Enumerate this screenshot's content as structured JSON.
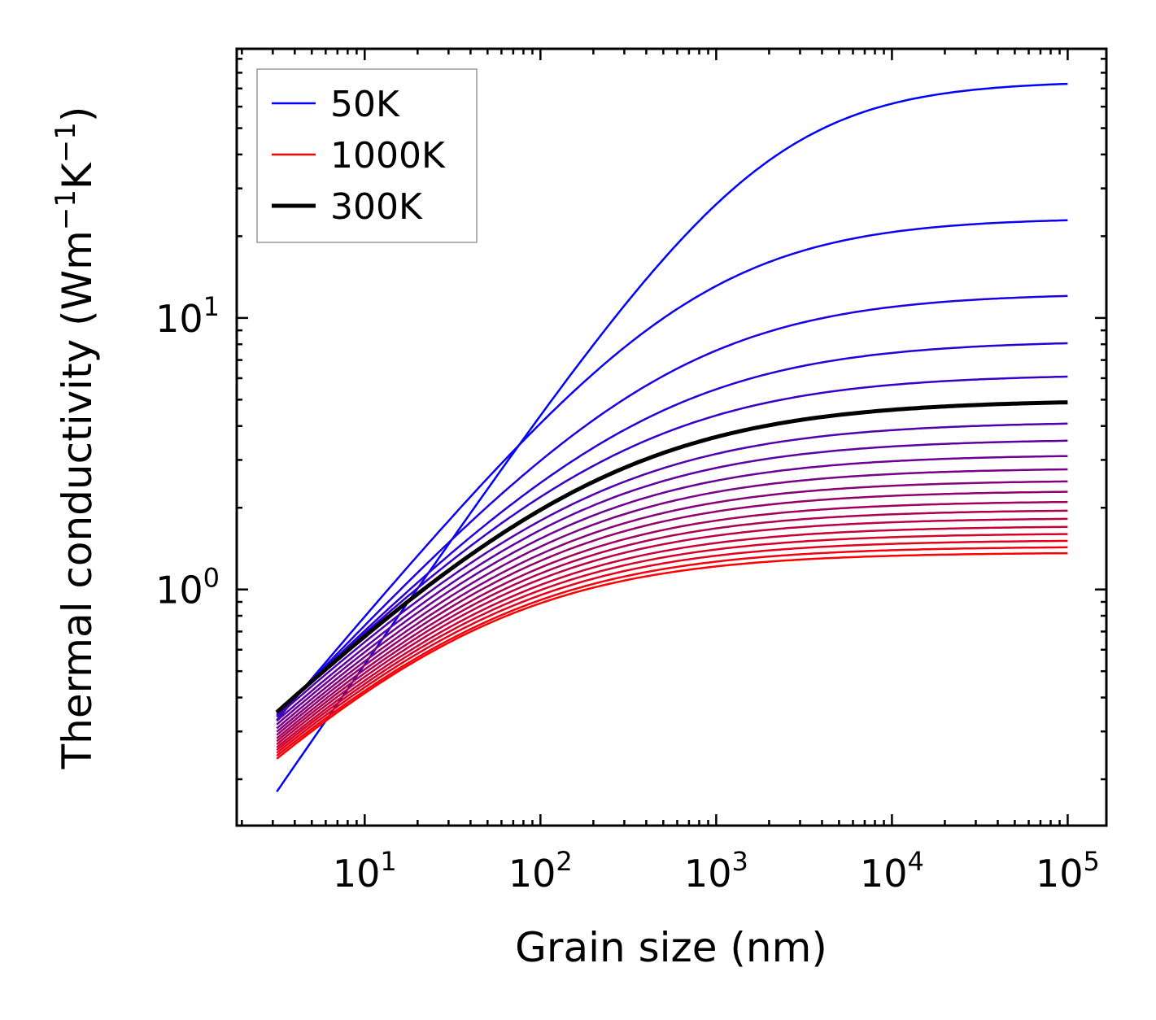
{
  "chart_data": {
    "type": "line",
    "title": "",
    "xlabel": "Grain size (nm)",
    "ylabel_main": "Thermal conductivity (Wm",
    "ylabel_sup1": "−1",
    "ylabel_mid": "K",
    "ylabel_sup2": "−1",
    "ylabel_end": ")",
    "xscale": "log",
    "yscale": "log",
    "xlim": [
      1.87,
      166000
    ],
    "ylim": [
      0.135,
      98
    ],
    "x_data_range": [
      3.16,
      100000
    ],
    "x_ticks": [
      {
        "value": 10,
        "base": "10",
        "exp": "1"
      },
      {
        "value": 100,
        "base": "10",
        "exp": "2"
      },
      {
        "value": 1000,
        "base": "10",
        "exp": "3"
      },
      {
        "value": 10000,
        "base": "10",
        "exp": "4"
      },
      {
        "value": 100000,
        "base": "10",
        "exp": "5"
      }
    ],
    "y_ticks": [
      {
        "value": 1,
        "base": "10",
        "exp": "0"
      },
      {
        "value": 10,
        "base": "10",
        "exp": "1"
      }
    ],
    "grid": false,
    "legend_placement": "top-left",
    "legend": [
      {
        "label": "50K",
        "color": "#0000ff",
        "width": "thin"
      },
      {
        "label": "1000K",
        "color": "#ff0000",
        "width": "thin"
      },
      {
        "label": "300K",
        "color": "#000000",
        "width": "thick"
      }
    ],
    "color_start": "#0000ff",
    "color_end": "#ff0000",
    "highlight_color": "#000000",
    "series_note": "Temperatures 50K to 1000K in 50K steps; values at smallest grain size (3.16 nm) and largest (1e5 nm)",
    "series": [
      {
        "T": 50,
        "k_start": 0.18,
        "k_end": 72.8,
        "shape": 0.94
      },
      {
        "T": 100,
        "k_start": 0.33,
        "k_end": 22.9,
        "shape": 0.78
      },
      {
        "T": 150,
        "k_start": 0.34,
        "k_end": 12.05,
        "shape": 0.7
      },
      {
        "T": 200,
        "k_start": 0.345,
        "k_end": 8.07,
        "shape": 0.66
      },
      {
        "T": 250,
        "k_start": 0.35,
        "k_end": 6.08,
        "shape": 0.64
      },
      {
        "T": 300,
        "k_start": 0.353,
        "k_end": 4.89,
        "shape": 0.62,
        "highlight": true
      },
      {
        "T": 350,
        "k_start": 0.34,
        "k_end": 4.08,
        "shape": 0.62
      },
      {
        "T": 400,
        "k_start": 0.328,
        "k_end": 3.53,
        "shape": 0.62
      },
      {
        "T": 450,
        "k_start": 0.318,
        "k_end": 3.1,
        "shape": 0.62
      },
      {
        "T": 500,
        "k_start": 0.308,
        "k_end": 2.77,
        "shape": 0.62
      },
      {
        "T": 550,
        "k_start": 0.299,
        "k_end": 2.5,
        "shape": 0.62
      },
      {
        "T": 600,
        "k_start": 0.291,
        "k_end": 2.29,
        "shape": 0.62
      },
      {
        "T": 650,
        "k_start": 0.283,
        "k_end": 2.1,
        "shape": 0.62
      },
      {
        "T": 700,
        "k_start": 0.276,
        "k_end": 1.95,
        "shape": 0.62
      },
      {
        "T": 750,
        "k_start": 0.269,
        "k_end": 1.82,
        "shape": 0.62
      },
      {
        "T": 800,
        "k_start": 0.262,
        "k_end": 1.7,
        "shape": 0.62
      },
      {
        "T": 850,
        "k_start": 0.256,
        "k_end": 1.6,
        "shape": 0.62
      },
      {
        "T": 900,
        "k_start": 0.25,
        "k_end": 1.51,
        "shape": 0.62
      },
      {
        "T": 950,
        "k_start": 0.244,
        "k_end": 1.43,
        "shape": 0.62
      },
      {
        "T": 1000,
        "k_start": 0.238,
        "k_end": 1.36,
        "shape": 0.63
      }
    ]
  }
}
